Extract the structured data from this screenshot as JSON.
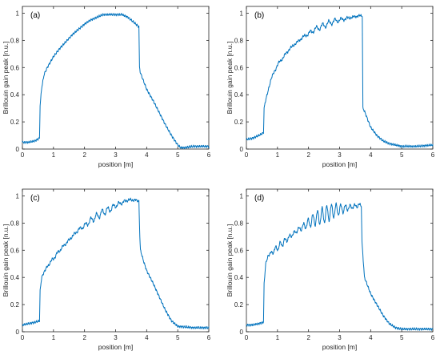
{
  "figure": {
    "panels": [
      "(a)",
      "(b)",
      "(c)",
      "(d)"
    ]
  },
  "colors": {
    "line": "#0072BD",
    "axis": "#262626"
  },
  "chart_data": [
    {
      "type": "line",
      "title": "(a)",
      "xlabel": "position  [m]",
      "ylabel": "Brillouin gain peak  [n.u.]",
      "xlim": [
        0,
        6
      ],
      "ylim": [
        0,
        1.05
      ],
      "xticks": [
        "0",
        "1",
        "2",
        "3",
        "4",
        "5",
        "6"
      ],
      "yticks": [
        "0",
        "0.2",
        "0.4",
        "0.6",
        "0.8",
        "1"
      ],
      "ripple": {
        "amplitude": 0.0,
        "period": 0.35
      },
      "series": [
        {
          "x": [
            0,
            0.2,
            0.4,
            0.55,
            0.57,
            0.62,
            0.7,
            0.8,
            1.0,
            1.2,
            1.4,
            1.6,
            1.8,
            2.0,
            2.2,
            2.4,
            2.6,
            2.8,
            3.0,
            3.2,
            3.4,
            3.6,
            3.75,
            3.77,
            3.8,
            3.9,
            4.0,
            4.2,
            4.4,
            4.6,
            4.8,
            5.0,
            5.1,
            5.2,
            5.5,
            6.0
          ],
          "y": [
            0.05,
            0.05,
            0.06,
            0.08,
            0.32,
            0.45,
            0.55,
            0.6,
            0.68,
            0.74,
            0.79,
            0.84,
            0.88,
            0.92,
            0.95,
            0.97,
            0.99,
            0.99,
            0.99,
            0.99,
            0.97,
            0.93,
            0.9,
            0.6,
            0.56,
            0.5,
            0.44,
            0.36,
            0.27,
            0.18,
            0.1,
            0.03,
            0.01,
            0.01,
            0.02,
            0.02
          ]
        }
      ]
    },
    {
      "type": "line",
      "title": "(b)",
      "xlabel": "position  [m]",
      "ylabel": "Brillouin gain peak  [n.u.]",
      "xlim": [
        0,
        6
      ],
      "ylim": [
        0,
        1.05
      ],
      "xticks": [
        "0",
        "1",
        "2",
        "3",
        "4",
        "5",
        "6"
      ],
      "yticks": [
        "0",
        "0.2",
        "0.4",
        "0.6",
        "0.8",
        "1"
      ],
      "ripple": {
        "amplitude": 0.02,
        "period": 0.2
      },
      "series": [
        {
          "x": [
            0,
            0.2,
            0.4,
            0.55,
            0.57,
            0.62,
            0.7,
            0.8,
            1.0,
            1.2,
            1.4,
            1.6,
            1.8,
            2.0,
            2.2,
            2.4,
            2.6,
            2.8,
            3.0,
            3.2,
            3.4,
            3.6,
            3.73,
            3.75,
            3.8,
            3.9,
            4.0,
            4.2,
            4.4,
            4.6,
            4.8,
            5.0,
            5.5,
            6.0
          ],
          "y": [
            0.07,
            0.08,
            0.1,
            0.12,
            0.3,
            0.36,
            0.43,
            0.52,
            0.62,
            0.68,
            0.74,
            0.78,
            0.82,
            0.85,
            0.88,
            0.9,
            0.92,
            0.94,
            0.95,
            0.96,
            0.97,
            0.98,
            0.98,
            0.3,
            0.28,
            0.22,
            0.16,
            0.1,
            0.06,
            0.04,
            0.03,
            0.02,
            0.02,
            0.03
          ]
        }
      ]
    },
    {
      "type": "line",
      "title": "(c)",
      "xlabel": "position  [m]",
      "ylabel": "Brillouin gain peak  [n.u.]",
      "xlim": [
        0,
        6
      ],
      "ylim": [
        0,
        1.05
      ],
      "xticks": [
        "0",
        "1",
        "2",
        "3",
        "4",
        "5",
        "6"
      ],
      "yticks": [
        "0",
        "0.2",
        "0.4",
        "0.6",
        "0.8",
        "1"
      ],
      "ripple": {
        "amplitude": 0.025,
        "period": 0.18
      },
      "series": [
        {
          "x": [
            0,
            0.2,
            0.4,
            0.55,
            0.57,
            0.62,
            0.7,
            0.8,
            1.0,
            1.2,
            1.4,
            1.6,
            1.8,
            2.0,
            2.2,
            2.4,
            2.6,
            2.8,
            3.0,
            3.2,
            3.4,
            3.6,
            3.75,
            3.78,
            3.8,
            3.9,
            4.0,
            4.2,
            4.4,
            4.6,
            4.8,
            5.0,
            5.5,
            6.0
          ],
          "y": [
            0.05,
            0.06,
            0.07,
            0.08,
            0.3,
            0.4,
            0.44,
            0.48,
            0.54,
            0.6,
            0.65,
            0.7,
            0.75,
            0.78,
            0.82,
            0.85,
            0.88,
            0.9,
            0.93,
            0.95,
            0.97,
            0.97,
            0.96,
            0.7,
            0.6,
            0.52,
            0.45,
            0.36,
            0.26,
            0.16,
            0.08,
            0.04,
            0.03,
            0.03
          ]
        }
      ]
    },
    {
      "type": "line",
      "title": "(d)",
      "xlabel": "position  [m]",
      "ylabel": "Brillouin gain peak  [n.u.]",
      "xlim": [
        0,
        6
      ],
      "ylim": [
        0,
        1.05
      ],
      "xticks": [
        "0",
        "1",
        "2",
        "3",
        "4",
        "5",
        "6"
      ],
      "yticks": [
        "0",
        "0.2",
        "0.4",
        "0.6",
        "0.8",
        "1"
      ],
      "ripple": {
        "amplitude": 0.06,
        "period": 0.15
      },
      "series": [
        {
          "x": [
            0,
            0.2,
            0.4,
            0.55,
            0.57,
            0.62,
            0.7,
            0.8,
            1.0,
            1.2,
            1.4,
            1.6,
            1.8,
            2.0,
            2.2,
            2.4,
            2.6,
            2.8,
            3.0,
            3.2,
            3.4,
            3.6,
            3.7,
            3.72,
            3.8,
            3.9,
            4.0,
            4.2,
            4.4,
            4.6,
            4.8,
            5.0,
            5.5,
            6.0
          ],
          "y": [
            0.05,
            0.05,
            0.06,
            0.07,
            0.35,
            0.5,
            0.56,
            0.58,
            0.62,
            0.66,
            0.7,
            0.74,
            0.77,
            0.8,
            0.83,
            0.85,
            0.87,
            0.89,
            0.9,
            0.91,
            0.92,
            0.93,
            0.93,
            0.66,
            0.4,
            0.34,
            0.28,
            0.2,
            0.12,
            0.06,
            0.03,
            0.02,
            0.02,
            0.02
          ]
        }
      ]
    }
  ]
}
